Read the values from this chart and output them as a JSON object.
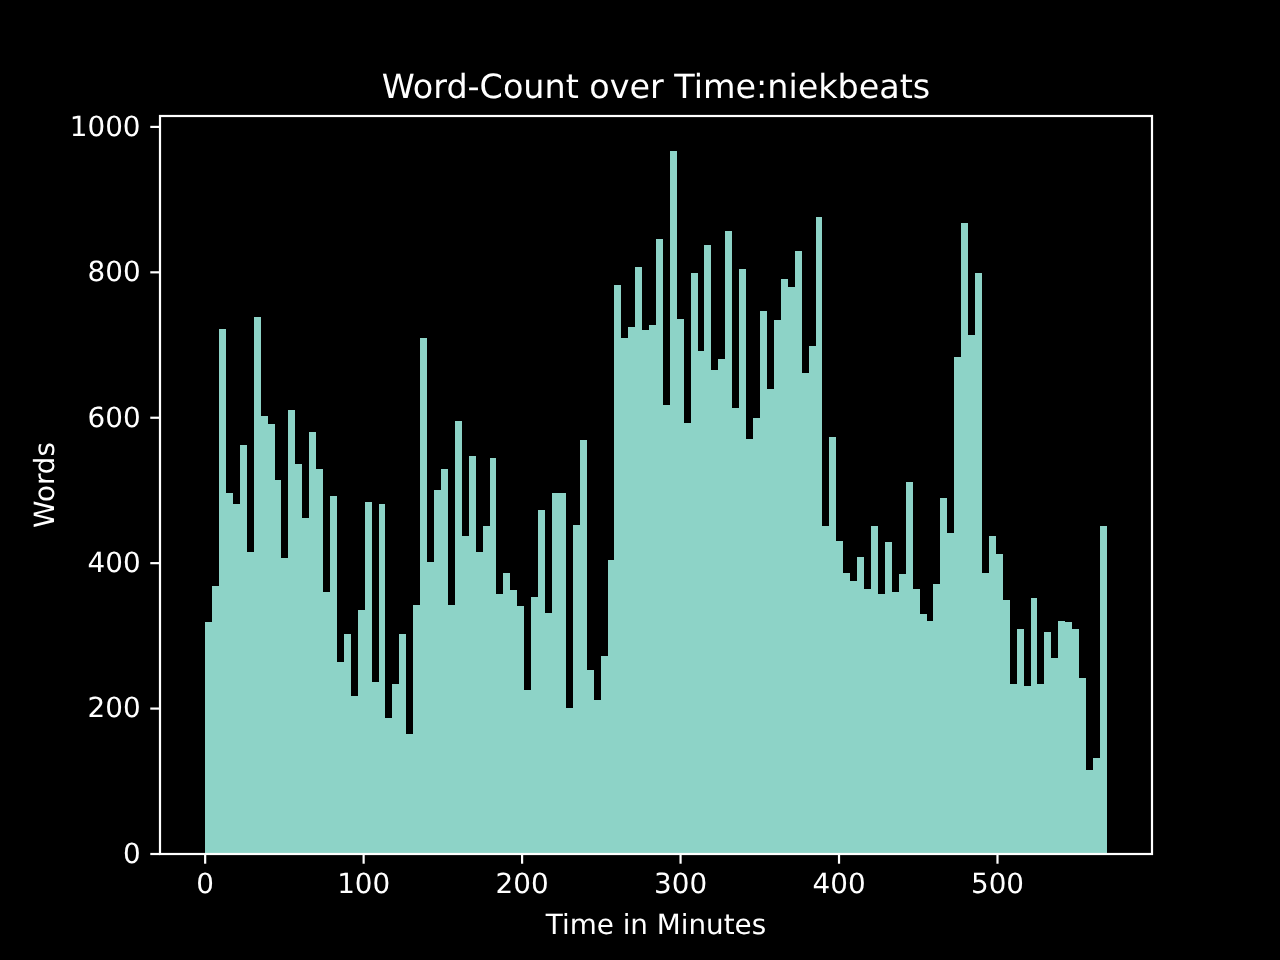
{
  "chart_data": {
    "type": "histogram",
    "title": "Word-Count over Time:niekbeats",
    "xlabel": "Time in Minutes",
    "ylabel": "Words",
    "color": "#8dd3c7",
    "bins": [
      0,
      4.4,
      8.8,
      13.1,
      17.5,
      21.9,
      26.3,
      30.6,
      35.0,
      39.4,
      43.8,
      48.1,
      52.5,
      56.9,
      61.3,
      65.7,
      70.0,
      74.4,
      78.8,
      83.2,
      87.5,
      91.9,
      96.3,
      100.7,
      105.0,
      109.4,
      113.8,
      118.2,
      122.6,
      126.9,
      131.3,
      135.7,
      140.1,
      144.4,
      148.8,
      153.2,
      157.6,
      161.9,
      166.3,
      170.7,
      175.1,
      179.5,
      183.8,
      188.2,
      192.6,
      197.0,
      201.3,
      205.7,
      210.1,
      214.5,
      218.8,
      223.2,
      227.6,
      232.0,
      236.4,
      240.7,
      245.1,
      249.5,
      253.9,
      258.2,
      262.6,
      267.0,
      271.4,
      275.7,
      280.1,
      284.5,
      288.9,
      293.3,
      297.6,
      302.0,
      306.4,
      310.8,
      315.1,
      319.5,
      323.9,
      328.3,
      332.6,
      337.0,
      341.4,
      345.8,
      350.2,
      354.5,
      358.9,
      363.3,
      367.7,
      372.0,
      376.4,
      380.8,
      385.2,
      389.5,
      393.9,
      398.3,
      402.7,
      407.1,
      411.4,
      415.8,
      420.2,
      424.6,
      428.9,
      433.3,
      437.7,
      442.1,
      446.4,
      450.8,
      455.2,
      459.6,
      464.0,
      468.3,
      472.7,
      477.1,
      481.5,
      485.8,
      490.2,
      494.6,
      499.0,
      503.3,
      507.7,
      512.1,
      516.5,
      520.9,
      525.2,
      529.6,
      534.0,
      538.4,
      542.7,
      547.1,
      551.5,
      555.9,
      560.2,
      564.6,
      569.0
    ],
    "values": [
      319,
      368,
      722,
      497,
      481,
      563,
      415,
      739,
      602,
      591,
      514,
      407,
      610,
      536,
      462,
      580,
      530,
      360,
      492,
      264,
      302,
      217,
      335,
      484,
      236,
      481,
      187,
      234,
      302,
      165,
      343,
      709,
      401,
      500,
      530,
      343,
      596,
      437,
      547,
      415,
      451,
      544,
      357,
      387,
      363,
      341,
      225,
      354,
      473,
      332,
      497,
      497,
      201,
      453,
      569,
      253,
      212,
      272,
      404,
      783,
      709,
      725,
      808,
      720,
      728,
      846,
      618,
      967,
      736,
      593,
      799,
      692,
      838,
      665,
      681,
      857,
      613,
      805,
      571,
      599,
      747,
      640,
      734,
      791,
      780,
      830,
      662,
      698,
      876,
      451,
      574,
      431,
      387,
      376,
      409,
      365,
      451,
      357,
      429,
      360,
      385,
      511,
      365,
      330,
      321,
      371,
      489,
      442,
      684,
      868,
      714,
      799,
      387,
      437,
      412,
      349,
      234,
      310,
      231,
      352,
      234,
      305,
      269,
      321,
      319,
      310,
      242,
      115,
      132,
      451
    ],
    "xlim": [
      -28.5,
      597.5
    ],
    "ylim": [
      0,
      1015
    ],
    "xticks": [
      0,
      100,
      200,
      300,
      400,
      500
    ],
    "yticks": [
      0,
      200,
      400,
      600,
      800,
      1000
    ]
  }
}
